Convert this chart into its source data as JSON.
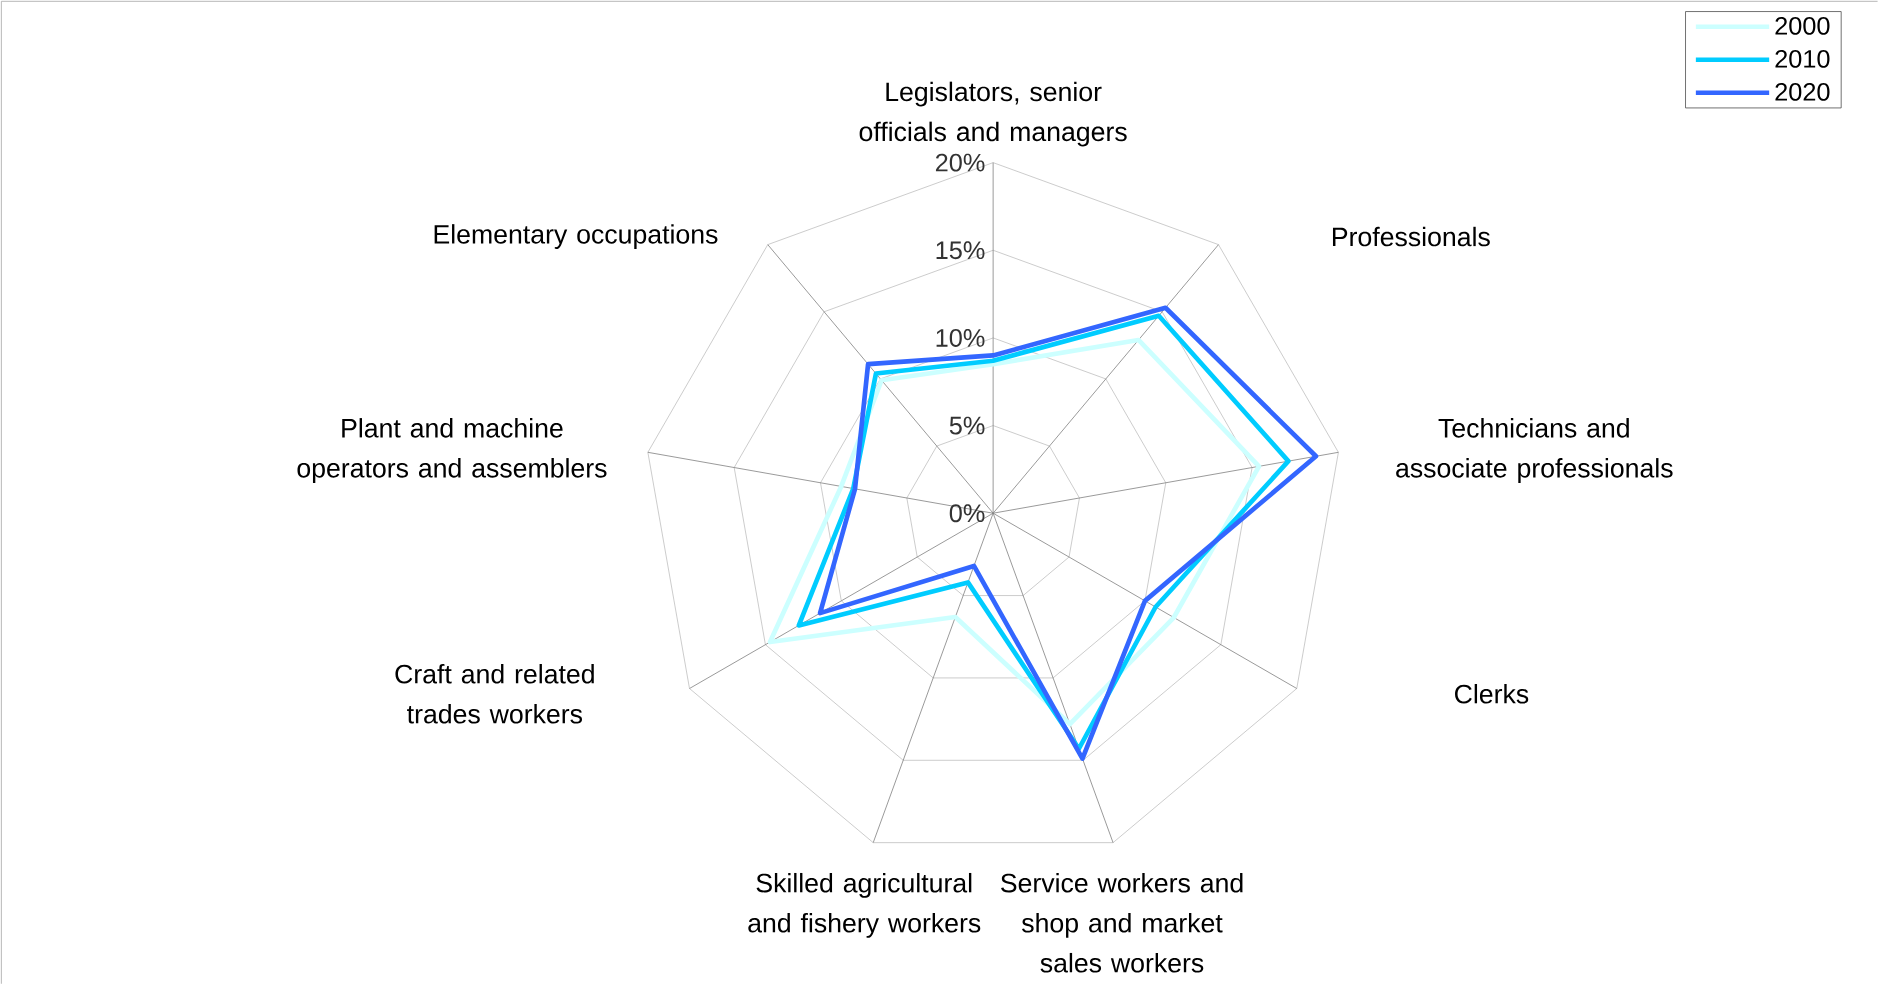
{
  "chart_data": {
    "type": "radar",
    "categories": [
      "Legislators, senior officials and managers",
      "Professionals",
      "Technicians and associate professionals",
      "Clerks",
      "Service workers and shop and market sales workers",
      "Skilled agricultural and fishery workers",
      "Craft and related trades workers",
      "Plant and machine operators and assemblers",
      "Elementary occupations"
    ],
    "series": [
      {
        "name": "2000",
        "color": "#ccffff",
        "values": [
          8.5,
          12.9,
          15.4,
          11.9,
          12.8,
          6.3,
          14.7,
          8.8,
          9.9
        ]
      },
      {
        "name": "2010",
        "color": "#00ccff",
        "values": [
          8.7,
          14.7,
          17.1,
          10.7,
          14.3,
          4.2,
          12.8,
          8.1,
          10.4
        ]
      },
      {
        "name": "2020",
        "color": "#3366ff",
        "values": [
          9.0,
          15.3,
          18.7,
          10.0,
          14.9,
          3.2,
          11.4,
          8.0,
          11.1
        ]
      }
    ],
    "ylim": [
      0,
      20
    ],
    "yticks": [
      {
        "value": 0,
        "label": "0%"
      },
      {
        "value": 5,
        "label": "5%"
      },
      {
        "value": 10,
        "label": "10%"
      },
      {
        "value": 15,
        "label": "15%"
      },
      {
        "value": 20,
        "label": "20%"
      }
    ],
    "grid": true,
    "legend": "top right"
  }
}
